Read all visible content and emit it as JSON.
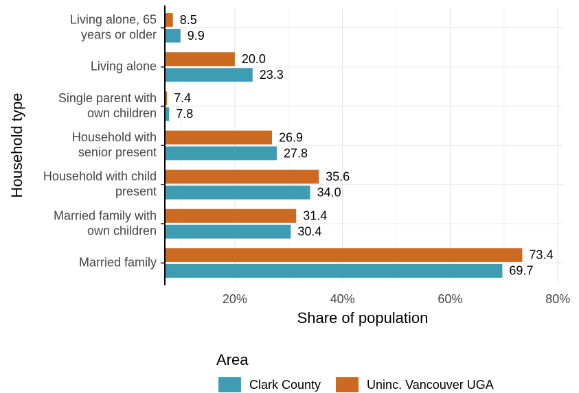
{
  "chart_data": {
    "type": "hbar",
    "x_label": "Share of population",
    "y_label": "Household type",
    "categories": [
      "Living alone, 65\nyears or older",
      "Living alone",
      "Single parent with\nown children",
      "Household with\nsenior present",
      "Household with child\npresent",
      "Married family with\nown children",
      "Married family"
    ],
    "series": [
      {
        "name": "Clark County",
        "color": "#3e9db3",
        "values": [
          9.9,
          23.3,
          7.8,
          27.8,
          34.0,
          30.4,
          69.7
        ],
        "value_labels": [
          "9.9",
          "23.3",
          "7.8",
          "27.8",
          "34.0",
          "30.4",
          "69.7"
        ]
      },
      {
        "name": "Uninc. Vancouver UGA",
        "color": "#cd6a22",
        "values": [
          8.5,
          20.0,
          7.4,
          26.9,
          35.6,
          31.4,
          73.4
        ],
        "value_labels": [
          "8.5",
          "20.0",
          "7.4",
          "26.9",
          "35.6",
          "31.4",
          "73.4"
        ]
      }
    ],
    "xlim": [
      7,
      81
    ],
    "xticks": [
      {
        "value": 20,
        "label": "20%"
      },
      {
        "value": 40,
        "label": "40%"
      },
      {
        "value": 60,
        "label": "60%"
      },
      {
        "value": 80,
        "label": "80%"
      }
    ],
    "xminor": [
      10,
      30,
      50,
      70
    ],
    "grid": true,
    "legend_title": "Area",
    "legend_position": "bottom"
  }
}
